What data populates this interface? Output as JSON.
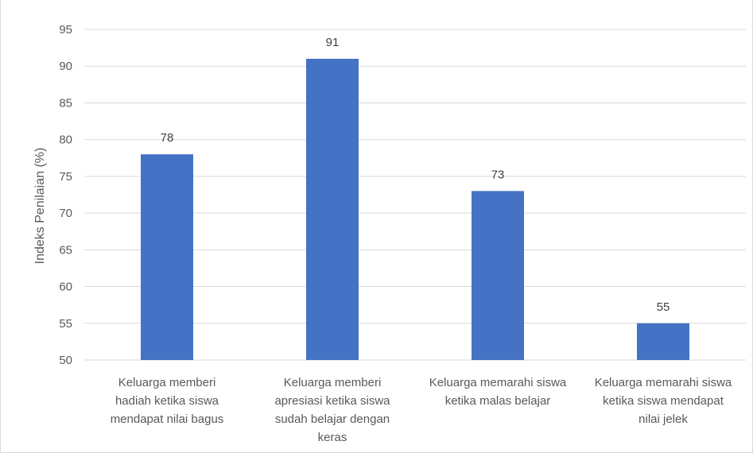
{
  "chart_data": {
    "type": "bar",
    "title": "",
    "xlabel": "",
    "ylabel": "Indeks Penilaian (%)",
    "ylim": [
      50,
      95
    ],
    "yticks": [
      50,
      55,
      60,
      65,
      70,
      75,
      80,
      85,
      90,
      95
    ],
    "grid": true,
    "legend": "none",
    "bar_color": "#4472C4",
    "categories": [
      [
        "Keluarga memberi",
        "hadiah ketika siswa",
        "mendapat nilai bagus"
      ],
      [
        "Keluarga memberi",
        "apresiasi ketika siswa",
        "sudah belajar dengan",
        "keras"
      ],
      [
        "Keluarga memarahi siswa",
        "ketika malas belajar"
      ],
      [
        "Keluarga memarahi siswa",
        "ketika siswa mendapat",
        "nilai jelek"
      ]
    ],
    "values": [
      78,
      91,
      73,
      55
    ]
  }
}
